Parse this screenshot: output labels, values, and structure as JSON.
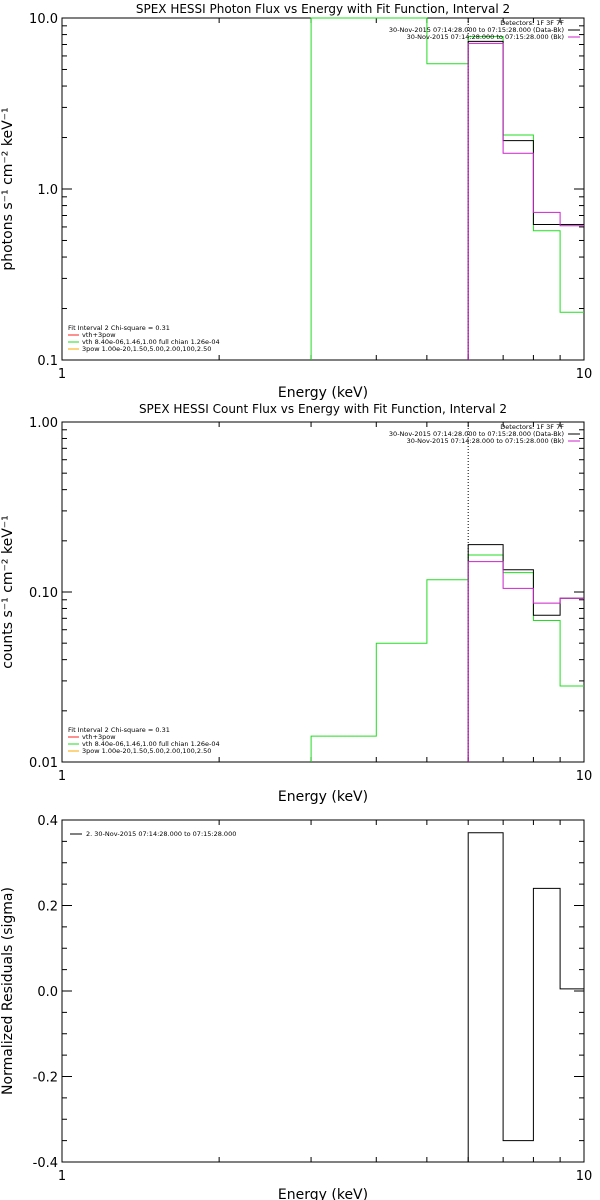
{
  "colors": {
    "green": "#22dd22",
    "magenta": "#cc22cc",
    "black": "#000000",
    "orange": "#ffaa00",
    "red": "#ff2222"
  },
  "chart_data": [
    {
      "type": "line",
      "title": "SPEX HESSI Photon Flux vs Energy with Fit Function, Interval 2",
      "xlabel": "Energy (keV)",
      "ylabel": "photons s⁻¹ cm⁻² keV⁻¹",
      "xscale": "log",
      "yscale": "log",
      "xlim": [
        1,
        10
      ],
      "ylim": [
        0.1,
        10
      ],
      "xticks": [
        {
          "v": 1,
          "label": "1"
        },
        {
          "v": 10,
          "label": "10"
        }
      ],
      "yticks": [
        {
          "v": 0.1,
          "label": "0.1"
        },
        {
          "v": 1,
          "label": "1.0"
        },
        {
          "v": 10,
          "label": "10.0"
        }
      ],
      "vline": 6.0,
      "legend_top": [
        {
          "text": "Detectors: 1F 3F 7F",
          "color": ""
        },
        {
          "text": "30-Nov-2015 07:14:28.000 to 07:15:28.000 (Data-Bk)",
          "color": "#000000"
        },
        {
          "text": "30-Nov-2015 07:14:28.000 to 07:15:28.000 (Bk)",
          "color": "#cc22cc"
        }
      ],
      "legend_bottom": [
        {
          "text": "Fit Interval 2   Chi-square = 0.31",
          "color": ""
        },
        {
          "text": "vth+3pow",
          "color": "#ff2222"
        },
        {
          "text": "vth 8.40e-06,1.46,1.00  full chian 1.26e-04",
          "color": "#22dd22"
        },
        {
          "text": "3pow 1.00e-20,1.50,5.00,2.00,100,2.50",
          "color": "#ffaa00"
        }
      ],
      "series": [
        {
          "color": "#22dd22",
          "edges": [
            3,
            4,
            5,
            6,
            7,
            8,
            9,
            10
          ],
          "values": [
            12,
            12,
            5.4,
            7.8,
            2.07,
            0.57,
            0.19
          ]
        },
        {
          "color": "#000000",
          "edges": [
            6,
            7,
            8,
            9,
            10
          ],
          "values": [
            7.3,
            1.92,
            0.62,
            0.62
          ]
        },
        {
          "color": "#cc22cc",
          "edges": [
            6,
            7,
            8,
            9,
            10
          ],
          "values": [
            7.1,
            1.62,
            0.73,
            0.61
          ]
        }
      ]
    },
    {
      "type": "line",
      "title": "SPEX HESSI Count Flux vs Energy with Fit Function, Interval 2",
      "xlabel": "Energy (keV)",
      "ylabel": "counts s⁻¹ cm⁻² keV⁻¹",
      "xscale": "log",
      "yscale": "log",
      "xlim": [
        1,
        10
      ],
      "ylim": [
        0.01,
        1
      ],
      "xticks": [
        {
          "v": 1,
          "label": "1"
        },
        {
          "v": 10,
          "label": "10"
        }
      ],
      "yticks": [
        {
          "v": 0.01,
          "label": "0.01"
        },
        {
          "v": 0.1,
          "label": "0.10"
        },
        {
          "v": 1,
          "label": "1.00"
        }
      ],
      "vline": 6.0,
      "legend_top": [
        {
          "text": "Detectors: 1F 3F 7F",
          "color": ""
        },
        {
          "text": "30-Nov-2015 07:14:28.000 to 07:15:28.000 (Data-Bk)",
          "color": "#000000"
        },
        {
          "text": "30-Nov-2015 07:14:28.000 to 07:15:28.000 (Bk)",
          "color": "#cc22cc"
        }
      ],
      "legend_bottom": [
        {
          "text": "Fit Interval 2   Chi-square = 0.31",
          "color": ""
        },
        {
          "text": "vth+3pow",
          "color": "#ff2222"
        },
        {
          "text": "vth 8.40e-06,1.46,1.00  full chian 1.26e-04",
          "color": "#22dd22"
        },
        {
          "text": "3pow 1.00e-20,1.50,5.00,2.00,100,2.50",
          "color": "#ffaa00"
        }
      ],
      "series": [
        {
          "color": "#22dd22",
          "edges": [
            3,
            4,
            5,
            6,
            7,
            8,
            9,
            10
          ],
          "values": [
            0.0142,
            0.05,
            0.118,
            0.165,
            0.13,
            0.068,
            0.028
          ]
        },
        {
          "color": "#000000",
          "edges": [
            6,
            7,
            8,
            9,
            10
          ],
          "values": [
            0.19,
            0.135,
            0.073,
            0.092
          ]
        },
        {
          "color": "#cc22cc",
          "edges": [
            6,
            7,
            8,
            9,
            10
          ],
          "values": [
            0.151,
            0.105,
            0.086,
            0.092
          ]
        }
      ]
    },
    {
      "type": "line",
      "title": "",
      "xlabel": "Energy (keV)",
      "ylabel": "Normalized Residuals (sigma)",
      "xscale": "log",
      "yscale": "linear",
      "xlim": [
        1,
        10
      ],
      "ylim": [
        -0.4,
        0.4
      ],
      "xticks": [
        {
          "v": 1,
          "label": "1"
        },
        {
          "v": 10,
          "label": "10"
        }
      ],
      "yticks": [
        {
          "v": -0.4,
          "label": "-0.4"
        },
        {
          "v": -0.2,
          "label": "-0.2"
        },
        {
          "v": 0,
          "label": "0.0"
        },
        {
          "v": 0.2,
          "label": "0.2"
        },
        {
          "v": 0.4,
          "label": "0.4"
        }
      ],
      "legend_top": [],
      "legend_bottom": [],
      "legend_left": {
        "text": "2. 30-Nov-2015 07:14:28.000 to 07:15:28.000",
        "color": "#000000"
      },
      "series": [
        {
          "color": "#000000",
          "edges": [
            6,
            7,
            8,
            9,
            10
          ],
          "values": [
            0.37,
            -0.35,
            0.24,
            0.005
          ],
          "baseline": -0.4
        }
      ]
    }
  ]
}
